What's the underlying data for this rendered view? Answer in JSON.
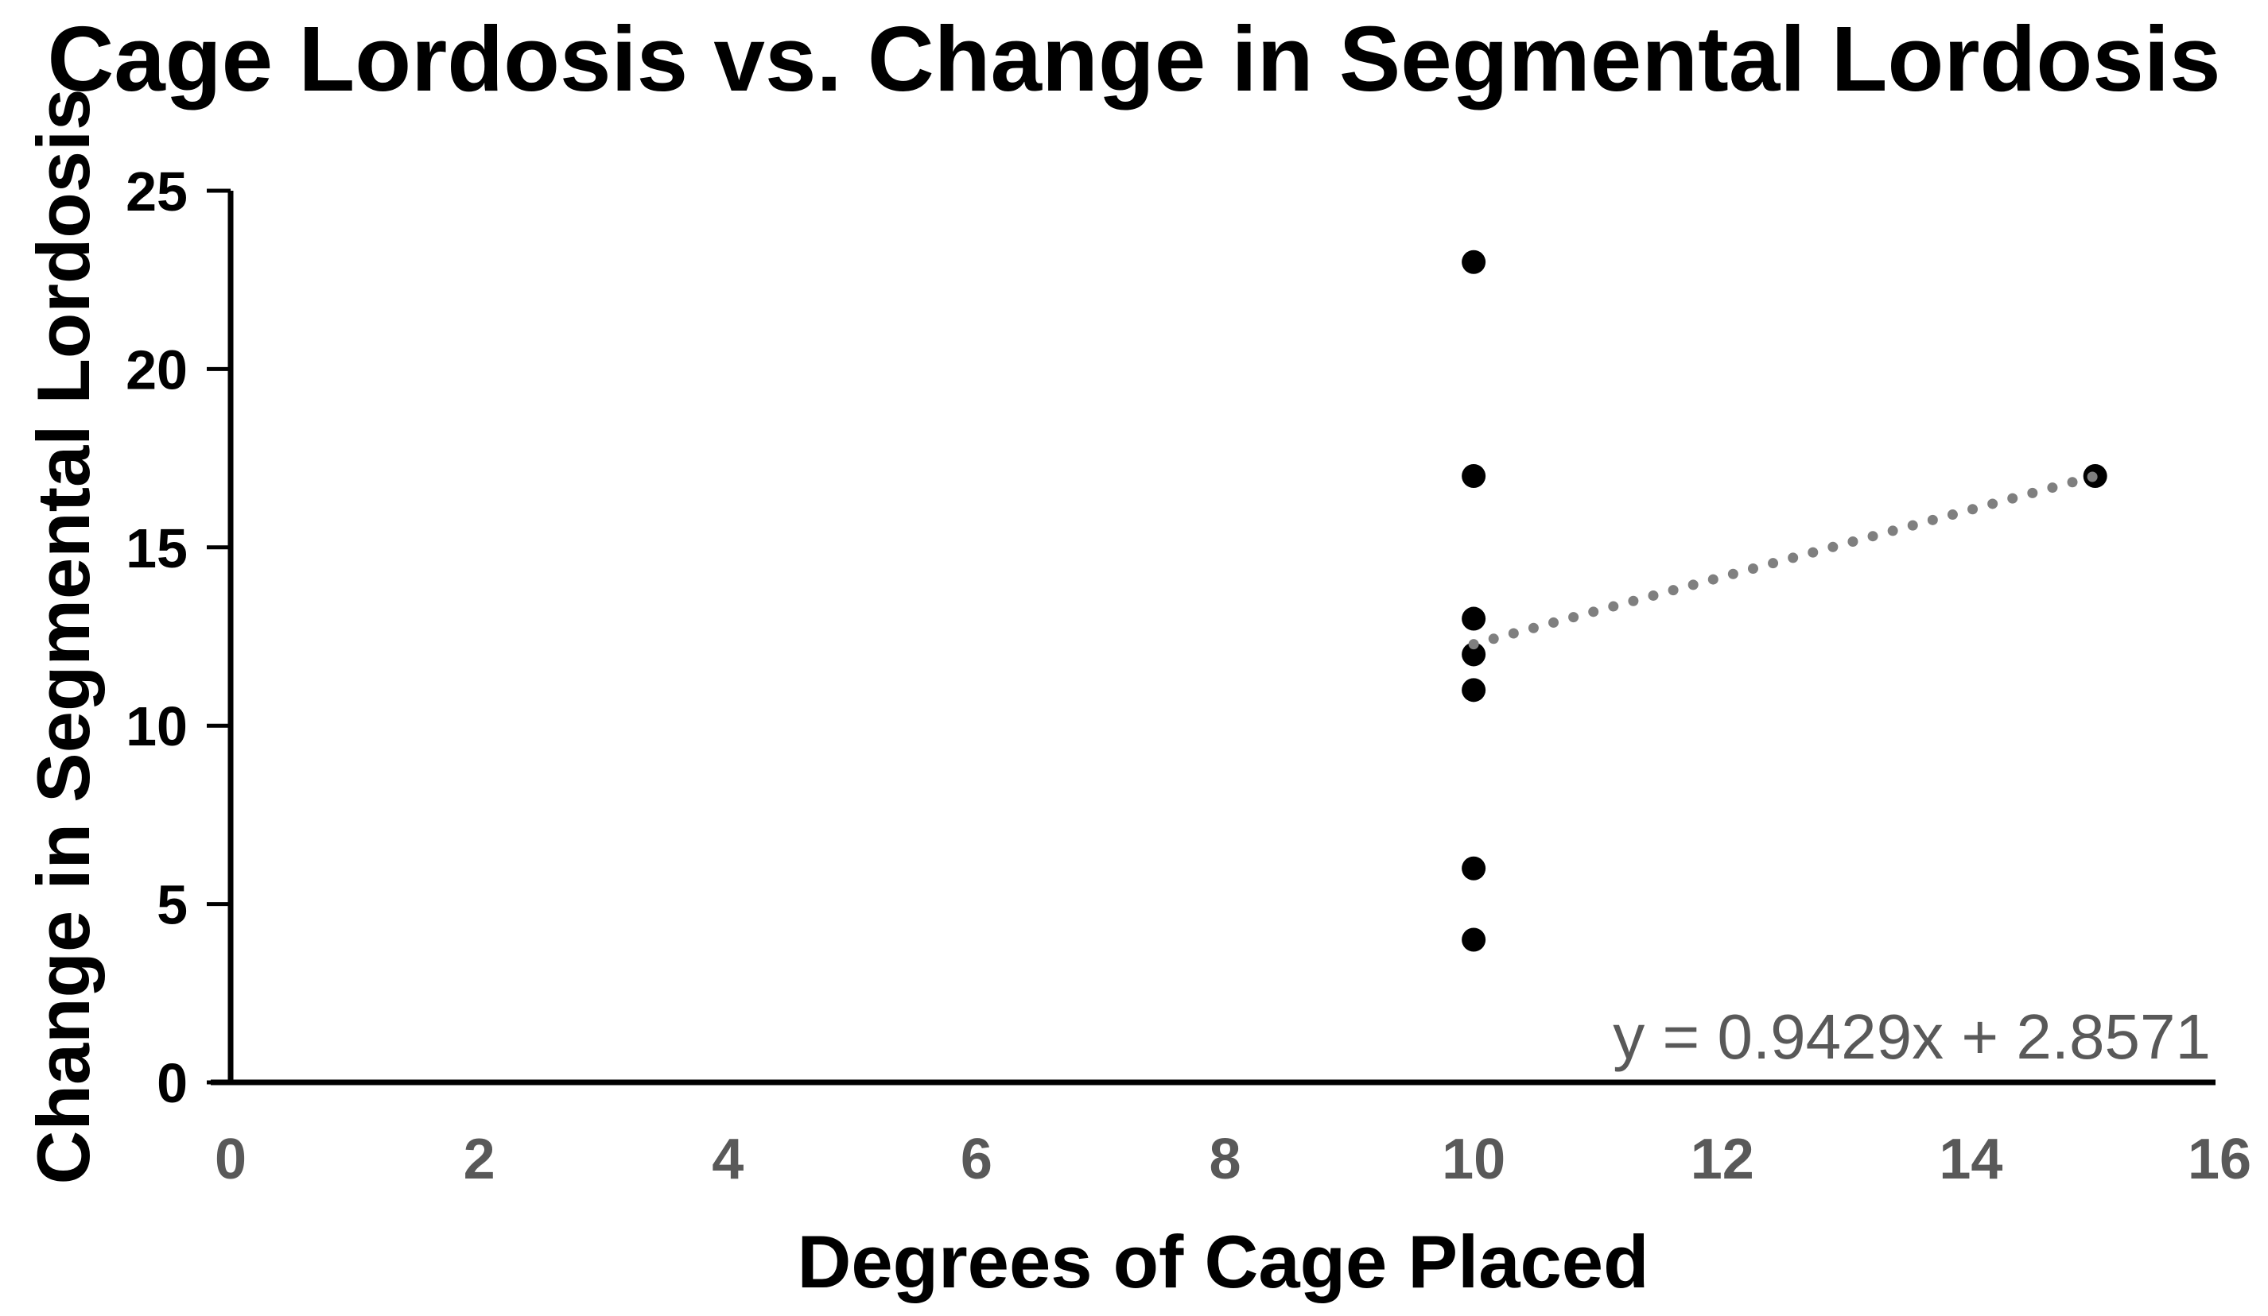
{
  "chart_data": {
    "type": "scatter",
    "title": "Cage Lordosis vs. Change in Segmental Lordosis",
    "xlabel": "Degrees of Cage Placed",
    "ylabel": "Change in Segmental Lordosis",
    "xlim": [
      0,
      16
    ],
    "xstep": 2,
    "x_tick_labels": [
      "0",
      "2",
      "4",
      "6",
      "8",
      "10",
      "12",
      "14",
      "16"
    ],
    "ylim": [
      0,
      25
    ],
    "ystep": 5,
    "y_tick_labels": [
      "0",
      "5",
      "10",
      "15",
      "20",
      "25"
    ],
    "grid": false,
    "legend": null,
    "points": [
      {
        "x": 10,
        "y": 23
      },
      {
        "x": 10,
        "y": 17
      },
      {
        "x": 10,
        "y": 13
      },
      {
        "x": 10,
        "y": 12
      },
      {
        "x": 10,
        "y": 11
      },
      {
        "x": 10,
        "y": 6
      },
      {
        "x": 10,
        "y": 4
      },
      {
        "x": 15,
        "y": 17
      }
    ],
    "trendline": {
      "equation_label": "y = 0.9429x + 2.8571",
      "slope": 0.9429,
      "intercept": 2.8571,
      "x_start": 10,
      "x_end": 15,
      "style": "dotted"
    },
    "colors": {
      "marker": "#000000",
      "axis": "#000000",
      "x_tick_label": "#595959",
      "y_tick_label": "#000000",
      "trendline": "#7f7f7f",
      "equation": "#595959",
      "background": "#ffffff"
    }
  }
}
